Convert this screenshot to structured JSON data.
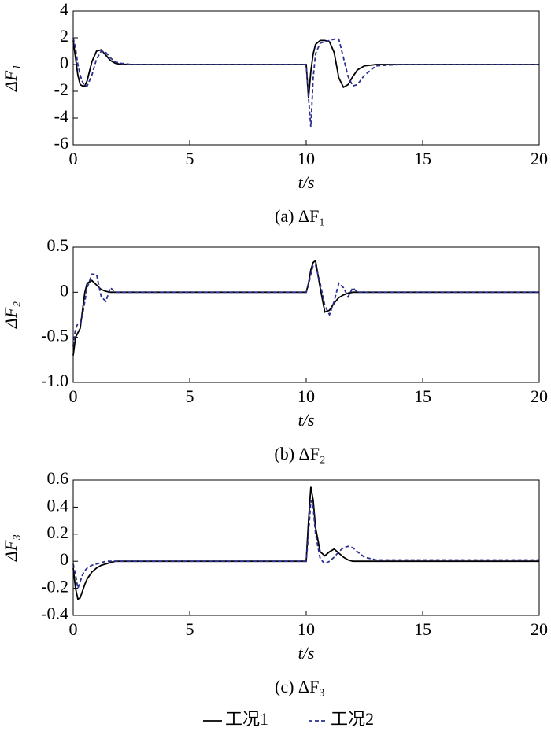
{
  "chart_data": [
    {
      "type": "line",
      "ylabel": "ΔF₁",
      "xlabel": "t/s",
      "caption": "(a) ΔF₁",
      "xlim": [
        0,
        20
      ],
      "xticks": [
        0,
        5,
        10,
        15,
        20
      ],
      "ylim": [
        -6,
        4
      ],
      "yticks": [
        -6,
        -4,
        -2,
        0,
        2,
        4
      ],
      "x": [
        0,
        0.1,
        0.2,
        0.3,
        0.4,
        0.5,
        0.6,
        0.8,
        1.0,
        1.2,
        1.4,
        1.6,
        1.8,
        2.0,
        2.5,
        3,
        5,
        8,
        10,
        10.1,
        10.2,
        10.3,
        10.4,
        10.6,
        10.8,
        11.0,
        11.2,
        11.4,
        11.6,
        11.8,
        12.0,
        12.2,
        12.5,
        13,
        14,
        16,
        18,
        20
      ],
      "series": [
        {
          "name": "工况1",
          "color": "#000000",
          "dash": false,
          "values": [
            1.8,
            0.5,
            -0.8,
            -1.5,
            -1.6,
            -1.6,
            -1.2,
            0.2,
            1.0,
            1.1,
            0.7,
            0.3,
            0.1,
            0.03,
            0,
            0,
            0,
            0,
            0,
            -2.5,
            -0.5,
            0.8,
            1.5,
            1.8,
            1.8,
            1.7,
            0.9,
            -1.0,
            -1.7,
            -1.5,
            -0.9,
            -0.4,
            -0.1,
            0,
            0,
            0,
            0,
            0
          ]
        },
        {
          "name": "工况2",
          "color": "#2b2f8f",
          "dash": true,
          "values": [
            2.0,
            1.2,
            0.0,
            -0.8,
            -1.3,
            -1.6,
            -1.6,
            -0.8,
            0.4,
            1.0,
            0.9,
            0.5,
            0.2,
            0.1,
            0,
            0,
            0,
            0,
            0,
            -2.5,
            -4.7,
            -1.0,
            0.8,
            1.6,
            1.7,
            1.8,
            1.9,
            1.9,
            0.5,
            -0.9,
            -1.6,
            -1.5,
            -0.8,
            -0.1,
            0,
            0,
            0,
            0
          ]
        }
      ]
    },
    {
      "type": "line",
      "ylabel": "ΔF₂",
      "xlabel": "t/s",
      "caption": "(b) ΔF₂",
      "xlim": [
        0,
        20
      ],
      "xticks": [
        0,
        5,
        10,
        15,
        20
      ],
      "ylim": [
        -1,
        0.5
      ],
      "yticks": [
        {
          "value": -1,
          "label": "-1.0"
        },
        {
          "value": -0.5,
          "label": "-0.5"
        },
        0,
        0.5
      ],
      "x": [
        0,
        0.1,
        0.2,
        0.3,
        0.4,
        0.5,
        0.6,
        0.8,
        1.0,
        1.2,
        1.4,
        1.6,
        1.8,
        2.0,
        2.5,
        3,
        5,
        8,
        10,
        10.1,
        10.2,
        10.3,
        10.4,
        10.6,
        10.8,
        11.0,
        11.2,
        11.4,
        11.6,
        11.8,
        12.0,
        12.2,
        12.5,
        13,
        14,
        16,
        18,
        20
      ],
      "series": [
        {
          "color": "#000000",
          "dash": false,
          "values": [
            -0.7,
            -0.5,
            -0.45,
            -0.4,
            -0.2,
            0.0,
            0.1,
            0.13,
            0.08,
            0.03,
            0.01,
            0,
            0,
            0,
            0,
            0,
            0,
            0,
            0,
            0.1,
            0.25,
            0.33,
            0.35,
            0.05,
            -0.22,
            -0.2,
            -0.12,
            -0.06,
            -0.03,
            -0.01,
            0,
            0,
            0,
            0,
            0,
            0,
            0,
            0
          ]
        },
        {
          "color": "#2b2f8f",
          "dash": true,
          "values": [
            -0.6,
            -0.4,
            -0.35,
            -0.35,
            -0.25,
            -0.1,
            0.05,
            0.2,
            0.2,
            -0.05,
            -0.1,
            0.05,
            0.0,
            0,
            0,
            0,
            0,
            0,
            0,
            0.08,
            0.2,
            0.3,
            0.3,
            0.1,
            -0.15,
            -0.25,
            -0.1,
            0.1,
            0.05,
            -0.05,
            0.05,
            0,
            0,
            0,
            0,
            0,
            0,
            0
          ]
        }
      ]
    },
    {
      "type": "line",
      "ylabel": "ΔF₃",
      "xlabel": "t/s",
      "caption": "(c) ΔF₃",
      "xlim": [
        0,
        20
      ],
      "xticks": [
        0,
        5,
        10,
        15,
        20
      ],
      "ylim": [
        -0.4,
        0.6
      ],
      "yticks": [
        -0.4,
        -0.2,
        0,
        0.2,
        0.4,
        0.6
      ],
      "x": [
        0,
        0.1,
        0.2,
        0.3,
        0.4,
        0.5,
        0.6,
        0.8,
        1.0,
        1.2,
        1.4,
        1.6,
        1.8,
        2.0,
        2.5,
        3,
        5,
        8,
        10,
        10.1,
        10.2,
        10.3,
        10.4,
        10.6,
        10.8,
        11.0,
        11.2,
        11.4,
        11.6,
        11.8,
        12.0,
        12.2,
        12.5,
        13,
        14,
        16,
        18,
        20
      ],
      "series": [
        {
          "color": "#000000",
          "dash": false,
          "values": [
            -0.05,
            -0.2,
            -0.28,
            -0.27,
            -0.22,
            -0.17,
            -0.13,
            -0.08,
            -0.05,
            -0.03,
            -0.02,
            -0.01,
            0,
            0,
            0,
            0,
            0,
            0,
            0,
            0.3,
            0.55,
            0.45,
            0.25,
            0.07,
            0.04,
            0.07,
            0.09,
            0.06,
            0.03,
            0.01,
            0,
            0,
            0,
            0,
            0,
            0,
            0,
            0
          ]
        },
        {
          "color": "#2b2f8f",
          "dash": true,
          "values": [
            -0.02,
            -0.1,
            -0.2,
            -0.15,
            -0.1,
            -0.07,
            -0.05,
            -0.03,
            -0.02,
            -0.01,
            0,
            0,
            0,
            0,
            0,
            0,
            0,
            0,
            0,
            0.2,
            0.45,
            0.4,
            0.2,
            0.02,
            -0.02,
            0.0,
            0.03,
            0.07,
            0.1,
            0.11,
            0.1,
            0.07,
            0.03,
            0.01,
            0.01,
            0.01,
            0.01,
            0.01
          ]
        }
      ]
    }
  ]
}
